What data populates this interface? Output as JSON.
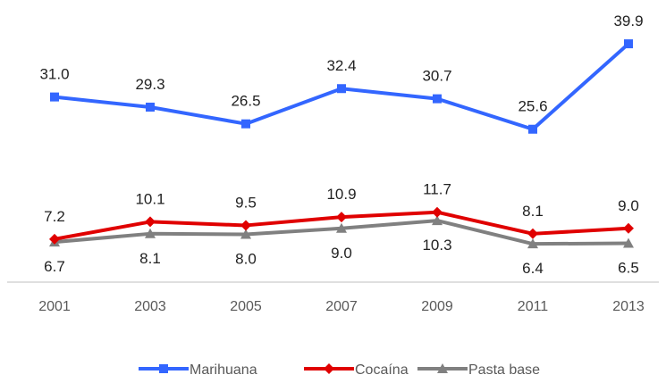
{
  "chart_data": {
    "type": "line",
    "title": "",
    "xlabel": "",
    "ylabel": "",
    "categories": [
      "2001",
      "2003",
      "2005",
      "2007",
      "2009",
      "2011",
      "2013"
    ],
    "ylim": [
      0,
      45
    ],
    "grid": false,
    "legend_position": "bottom",
    "series": [
      {
        "name": "Marihuana",
        "values": [
          31.0,
          29.3,
          26.5,
          32.4,
          30.7,
          25.6,
          39.9
        ],
        "labels": [
          "31.0",
          "29.3",
          "26.5",
          "32.4",
          "30.7",
          "25.6",
          "39.9"
        ],
        "color": "#3366FF",
        "marker": "square",
        "label_position": "above"
      },
      {
        "name": "Cocaína",
        "values": [
          7.2,
          10.1,
          9.5,
          10.9,
          11.7,
          8.1,
          9.0
        ],
        "labels": [
          "7.2",
          "10.1",
          "9.5",
          "10.9",
          "11.7",
          "8.1",
          "9.0"
        ],
        "color": "#E00000",
        "marker": "diamond",
        "label_position": "above"
      },
      {
        "name": "Pasta base",
        "values": [
          6.7,
          8.1,
          8.0,
          9.0,
          10.3,
          6.4,
          6.5
        ],
        "labels": [
          "6.7",
          "8.1",
          "8.0",
          "9.0",
          "10.3",
          "6.4",
          "6.5"
        ],
        "color": "#808080",
        "marker": "triangle",
        "label_position": "below"
      }
    ]
  }
}
